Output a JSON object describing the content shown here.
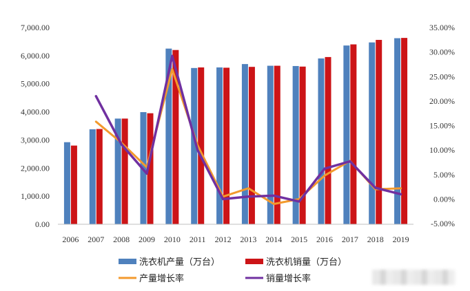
{
  "chart_data": {
    "type": "bar",
    "categories": [
      "2006",
      "2007",
      "2008",
      "2009",
      "2010",
      "2011",
      "2012",
      "2013",
      "2014",
      "2015",
      "2016",
      "2017",
      "2018",
      "2019"
    ],
    "left_axis": {
      "ylim": [
        0,
        7000
      ],
      "ticks": [
        0,
        1000,
        2000,
        3000,
        4000,
        5000,
        6000,
        7000
      ],
      "tick_labels": [
        "0.00",
        "1,000.00",
        "2,000.00",
        "3,000.00",
        "4,000.00",
        "5,000.00",
        "6,000.00",
        "7,000.00"
      ]
    },
    "right_axis": {
      "ylim": [
        -5,
        35
      ],
      "ticks": [
        -5,
        0,
        5,
        10,
        15,
        20,
        25,
        30,
        35
      ],
      "tick_labels": [
        "-5.00%",
        "0.00%",
        "5.00%",
        "10.00%",
        "15.00%",
        "20.00%",
        "25.00%",
        "30.00%",
        "35.00%"
      ]
    },
    "series": [
      {
        "name": "洗衣机产量（万台）",
        "kind": "bar",
        "axis": "left",
        "color": "#4f81bd",
        "values": [
          2920,
          3380,
          3760,
          3990,
          6250,
          5560,
          5580,
          5700,
          5640,
          5630,
          5900,
          6360,
          6470,
          6620
        ]
      },
      {
        "name": "洗衣机销量（万台）",
        "kind": "bar",
        "axis": "left",
        "color": "#cc1417",
        "values": [
          2800,
          3390,
          3760,
          3950,
          6200,
          5580,
          5570,
          5600,
          5640,
          5610,
          5950,
          6400,
          6560,
          6630
        ]
      },
      {
        "name": "产量增长率",
        "kind": "line",
        "axis": "right",
        "color": "#f39a2d",
        "values": [
          null,
          15.8,
          11.5,
          6.5,
          26.5,
          11.0,
          0.5,
          2.2,
          -1.0,
          0.0,
          4.8,
          7.8,
          2.0,
          2.2
        ]
      },
      {
        "name": "销量增长率",
        "kind": "line",
        "axis": "right",
        "color": "#7030a0",
        "values": [
          null,
          21.0,
          11.2,
          5.2,
          29.2,
          10.0,
          0.0,
          0.5,
          0.7,
          -0.5,
          6.2,
          7.7,
          2.3,
          1.0
        ]
      }
    ],
    "legend": {
      "placement": "bottom"
    },
    "grid": false
  }
}
